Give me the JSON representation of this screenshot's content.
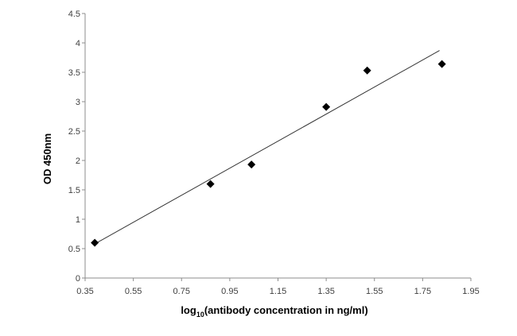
{
  "chart_data": {
    "type": "scatter",
    "xlabel_prefix": "log",
    "xlabel_sub": "10",
    "xlabel_rest": "(antibody concentration in ng/ml)",
    "ylabel": "OD 450nm",
    "xlim": [
      0.35,
      1.95
    ],
    "ylim": [
      0,
      4.5
    ],
    "x_ticks": [
      "0.35",
      "0.55",
      "0.75",
      "0.95",
      "1.15",
      "1.35",
      "1.55",
      "1.75",
      "1.95"
    ],
    "y_ticks": [
      "0",
      "0.5",
      "1",
      "1.5",
      "2",
      "2.5",
      "3",
      "3.5",
      "4",
      "4.5"
    ],
    "grid": false,
    "legend": "none",
    "marker": "diamond",
    "series": [
      {
        "x": [
          0.39,
          0.87,
          1.04,
          1.35,
          1.52,
          1.83
        ],
        "y": [
          0.6,
          1.6,
          1.93,
          2.91,
          3.53,
          3.64
        ]
      }
    ],
    "trendline": {
      "type": "linear",
      "x": [
        0.39,
        1.82
      ],
      "y": [
        0.58,
        3.87
      ]
    },
    "colors": {
      "marker": "#000000",
      "trendline": "#333333",
      "axis": "#8c8c8c"
    }
  }
}
